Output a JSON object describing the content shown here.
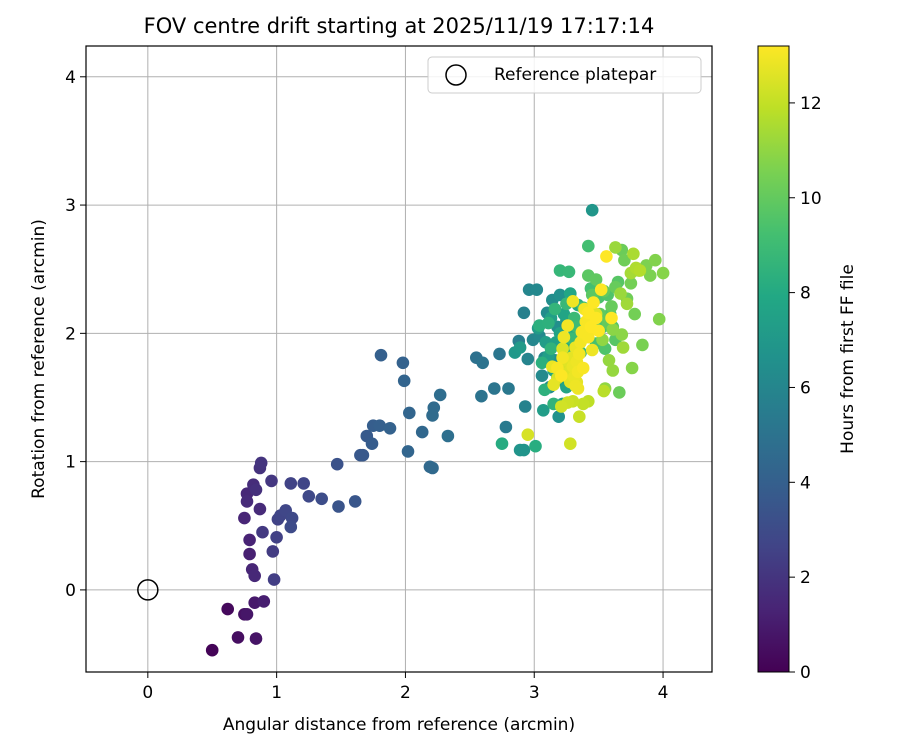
{
  "chart_data": {
    "type": "scatter",
    "title": "FOV centre drift starting at 2025/11/19 17:17:14",
    "xlabel": "Angular distance from reference (arcmin)",
    "ylabel": "Rotation from reference (arcmin)",
    "xlim": [
      -0.48,
      4.38
    ],
    "ylim": [
      -0.64,
      4.24
    ],
    "xticks": [
      0,
      1,
      2,
      3,
      4
    ],
    "yticks": [
      0,
      1,
      2,
      3,
      4
    ],
    "xtick_labels": [
      "0",
      "1",
      "2",
      "3",
      "4"
    ],
    "ytick_labels": [
      "0",
      "1",
      "2",
      "3",
      "4"
    ],
    "grid": true,
    "legend": {
      "position": "upper right",
      "entries": [
        "Reference platepar"
      ]
    },
    "reference_point": {
      "x": 0,
      "y": 0,
      "label": "Reference platepar"
    },
    "colorbar": {
      "label": "Hours from first FF file",
      "range": [
        0,
        13.2
      ],
      "ticks": [
        0,
        2,
        4,
        6,
        8,
        10,
        12
      ],
      "tick_labels": [
        "0",
        "2",
        "4",
        "6",
        "8",
        "10",
        "12"
      ],
      "colormap": "viridis"
    },
    "series": [
      {
        "name": "FOV centre drift",
        "points": [
          [
            0.5,
            -0.47,
            0.1
          ],
          [
            0.62,
            -0.15,
            0.3
          ],
          [
            0.7,
            -0.37,
            0.5
          ],
          [
            0.75,
            -0.19,
            0.6
          ],
          [
            0.84,
            -0.38,
            0.7
          ],
          [
            0.83,
            -0.1,
            0.9
          ],
          [
            0.9,
            -0.09,
            1.1
          ],
          [
            0.77,
            -0.19,
            0.8
          ],
          [
            0.79,
            0.28,
            1.2
          ],
          [
            0.79,
            0.39,
            1.3
          ],
          [
            0.81,
            0.16,
            1.4
          ],
          [
            0.83,
            0.11,
            1.5
          ],
          [
            0.87,
            0.63,
            1.6
          ],
          [
            0.75,
            0.56,
            1.4
          ],
          [
            0.77,
            0.75,
            1.5
          ],
          [
            0.77,
            0.69,
            1.6
          ],
          [
            0.82,
            0.82,
            1.7
          ],
          [
            0.84,
            0.78,
            1.8
          ],
          [
            0.87,
            0.95,
            1.9
          ],
          [
            0.88,
            0.99,
            2.0
          ],
          [
            0.89,
            0.45,
            2.2
          ],
          [
            0.96,
            0.85,
            2.1
          ],
          [
            0.97,
            0.3,
            2.3
          ],
          [
            0.98,
            0.08,
            2.4
          ],
          [
            1.0,
            0.41,
            2.5
          ],
          [
            1.01,
            0.55,
            2.6
          ],
          [
            1.03,
            0.58,
            2.7
          ],
          [
            1.07,
            0.62,
            2.8
          ],
          [
            1.11,
            0.49,
            3.0
          ],
          [
            1.12,
            0.56,
            2.9
          ],
          [
            1.11,
            0.83,
            2.6
          ],
          [
            1.21,
            0.83,
            2.7
          ],
          [
            1.25,
            0.73,
            2.9
          ],
          [
            1.35,
            0.71,
            3.1
          ],
          [
            1.47,
            0.98,
            3.3
          ],
          [
            1.48,
            0.65,
            3.4
          ],
          [
            1.61,
            0.69,
            3.5
          ],
          [
            1.65,
            1.05,
            3.6
          ],
          [
            1.67,
            1.05,
            3.6
          ],
          [
            1.7,
            1.2,
            3.7
          ],
          [
            1.74,
            1.14,
            3.8
          ],
          [
            1.75,
            1.28,
            3.9
          ],
          [
            1.8,
            1.28,
            4.0
          ],
          [
            1.81,
            1.83,
            4.0
          ],
          [
            1.88,
            1.26,
            4.1
          ],
          [
            1.98,
            1.77,
            4.1
          ],
          [
            1.99,
            1.63,
            4.2
          ],
          [
            2.02,
            1.08,
            4.3
          ],
          [
            2.03,
            1.38,
            4.3
          ],
          [
            2.13,
            1.23,
            4.4
          ],
          [
            2.19,
            0.96,
            4.5
          ],
          [
            2.21,
            0.95,
            4.5
          ],
          [
            2.21,
            1.36,
            4.6
          ],
          [
            2.22,
            1.42,
            4.6
          ],
          [
            2.27,
            1.52,
            4.7
          ],
          [
            2.33,
            1.2,
            4.8
          ],
          [
            2.55,
            1.81,
            4.9
          ],
          [
            2.59,
            1.51,
            5.0
          ],
          [
            2.6,
            1.77,
            5.0
          ],
          [
            2.69,
            1.57,
            5.1
          ],
          [
            2.73,
            1.84,
            5.2
          ],
          [
            2.8,
            1.57,
            5.3
          ],
          [
            2.78,
            1.27,
            5.4
          ],
          [
            2.88,
            1.94,
            5.6
          ],
          [
            2.89,
            1.09,
            6.8
          ],
          [
            2.92,
            1.09,
            6.8
          ],
          [
            2.92,
            2.16,
            5.7
          ],
          [
            2.93,
            1.43,
            5.8
          ],
          [
            2.95,
            1.8,
            5.9
          ],
          [
            2.96,
            2.34,
            6.0
          ],
          [
            2.99,
            1.95,
            6.0
          ],
          [
            3.02,
            2.34,
            6.1
          ],
          [
            3.04,
            1.98,
            6.2
          ],
          [
            3.06,
            1.67,
            6.2
          ],
          [
            3.08,
            1.81,
            6.3
          ],
          [
            3.1,
            2.16,
            6.3
          ],
          [
            3.12,
            1.58,
            6.4
          ],
          [
            3.14,
            2.26,
            6.4
          ],
          [
            3.16,
            1.79,
            6.5
          ],
          [
            3.18,
            2.05,
            6.5
          ],
          [
            3.19,
            1.35,
            6.6
          ],
          [
            3.2,
            2.3,
            6.6
          ],
          [
            3.22,
            1.63,
            6.7
          ],
          [
            3.24,
            1.84,
            6.8
          ],
          [
            3.25,
            2.1,
            6.9
          ],
          [
            3.45,
            2.96,
            6.9
          ],
          [
            2.85,
            1.85,
            7.0
          ],
          [
            2.89,
            1.89,
            7.1
          ],
          [
            3.03,
            2.04,
            7.2
          ],
          [
            3.07,
            1.4,
            7.3
          ],
          [
            3.09,
            1.93,
            7.3
          ],
          [
            3.11,
            1.82,
            7.4
          ],
          [
            3.13,
            2.12,
            7.4
          ],
          [
            3.15,
            1.71,
            7.5
          ],
          [
            3.17,
            1.93,
            7.5
          ],
          [
            3.2,
            2.0,
            7.6
          ],
          [
            3.22,
            1.45,
            7.6
          ],
          [
            3.23,
            2.15,
            7.7
          ],
          [
            3.25,
            1.58,
            7.7
          ],
          [
            3.27,
            1.89,
            7.8
          ],
          [
            3.28,
            2.31,
            7.8
          ],
          [
            3.3,
            2.04,
            7.9
          ],
          [
            3.32,
            1.73,
            7.9
          ],
          [
            3.34,
            2.22,
            8.0
          ],
          [
            2.75,
            1.14,
            8.1
          ],
          [
            3.01,
            1.12,
            8.2
          ],
          [
            3.04,
            2.06,
            8.3
          ],
          [
            3.06,
            1.77,
            8.3
          ],
          [
            3.08,
            1.56,
            8.4
          ],
          [
            3.11,
            2.08,
            8.4
          ],
          [
            3.13,
            1.88,
            8.5
          ],
          [
            3.15,
            1.45,
            8.5
          ],
          [
            3.16,
            2.19,
            8.6
          ],
          [
            3.18,
            1.66,
            8.6
          ],
          [
            3.2,
            2.49,
            8.7
          ],
          [
            3.23,
            1.87,
            8.7
          ],
          [
            3.25,
            2.23,
            8.8
          ],
          [
            3.27,
            2.48,
            8.8
          ],
          [
            3.29,
            1.96,
            8.9
          ],
          [
            3.31,
            2.12,
            8.9
          ],
          [
            3.33,
            2.05,
            9.0
          ],
          [
            3.36,
            1.85,
            9.0
          ],
          [
            3.38,
            2.2,
            9.1
          ],
          [
            3.4,
            1.98,
            9.1
          ],
          [
            3.42,
            2.68,
            9.2
          ],
          [
            3.44,
            2.35,
            9.2
          ],
          [
            3.46,
            2.1,
            9.3
          ],
          [
            3.48,
            1.92,
            9.3
          ],
          [
            3.5,
            2.28,
            9.4
          ],
          [
            3.53,
            2.05,
            9.4
          ],
          [
            3.55,
            1.88,
            9.5
          ],
          [
            3.57,
            2.3,
            9.5
          ],
          [
            3.59,
            2.15,
            9.6
          ],
          [
            3.61,
            2.05,
            9.6
          ],
          [
            3.63,
            1.95,
            9.7
          ],
          [
            3.65,
            2.4,
            9.7
          ],
          [
            3.42,
            2.45,
            9.8
          ],
          [
            3.45,
            2.3,
            9.8
          ],
          [
            3.48,
            2.42,
            9.9
          ],
          [
            3.51,
            2.15,
            9.9
          ],
          [
            3.54,
            2.33,
            10.0
          ],
          [
            3.57,
            2.08,
            10.0
          ],
          [
            3.6,
            2.21,
            10.1
          ],
          [
            3.63,
            2.36,
            10.1
          ],
          [
            3.66,
            1.54,
            10.2
          ],
          [
            3.68,
            2.65,
            10.2
          ],
          [
            3.7,
            2.57,
            10.3
          ],
          [
            3.72,
            2.27,
            10.3
          ],
          [
            3.75,
            2.39,
            10.4
          ],
          [
            3.78,
            2.15,
            10.4
          ],
          [
            3.81,
            2.49,
            10.5
          ],
          [
            3.84,
            1.91,
            10.5
          ],
          [
            3.87,
            2.53,
            10.6
          ],
          [
            3.9,
            2.45,
            10.6
          ],
          [
            3.94,
            2.57,
            10.7
          ],
          [
            3.97,
            2.11,
            10.7
          ],
          [
            4.0,
            2.47,
            10.8
          ],
          [
            3.76,
            1.73,
            10.8
          ],
          [
            3.68,
            1.99,
            10.9
          ],
          [
            3.61,
            2.03,
            10.9
          ],
          [
            3.55,
            1.57,
            11.0
          ],
          [
            3.53,
            1.95,
            11.0
          ],
          [
            3.58,
            1.79,
            11.1
          ],
          [
            3.61,
            1.71,
            11.1
          ],
          [
            3.63,
            2.67,
            11.2
          ],
          [
            3.67,
            2.31,
            11.2
          ],
          [
            3.69,
            1.89,
            11.3
          ],
          [
            3.72,
            2.23,
            11.3
          ],
          [
            3.75,
            2.47,
            11.4
          ],
          [
            3.77,
            2.62,
            11.5
          ],
          [
            3.79,
            2.51,
            11.6
          ],
          [
            3.82,
            2.49,
            11.7
          ],
          [
            3.54,
            1.55,
            11.8
          ],
          [
            3.42,
            1.47,
            11.9
          ],
          [
            3.38,
            1.45,
            12.0
          ],
          [
            3.3,
            1.47,
            12.1
          ],
          [
            3.26,
            1.46,
            12.2
          ],
          [
            3.28,
            1.14,
            12.3
          ],
          [
            3.21,
            1.43,
            12.3
          ],
          [
            3.18,
            1.65,
            12.4
          ],
          [
            3.2,
            1.72,
            12.4
          ],
          [
            3.22,
            1.88,
            12.5
          ],
          [
            3.24,
            1.68,
            12.5
          ],
          [
            3.25,
            1.79,
            12.6
          ],
          [
            3.27,
            1.7,
            12.6
          ],
          [
            3.28,
            1.62,
            12.7
          ],
          [
            3.29,
            1.81,
            12.7
          ],
          [
            3.3,
            1.74,
            12.8
          ],
          [
            3.31,
            1.66,
            12.8
          ],
          [
            3.32,
            1.59,
            12.9
          ],
          [
            3.33,
            1.78,
            12.9
          ],
          [
            3.34,
            1.7,
            13.0
          ],
          [
            3.35,
            1.84,
            13.0
          ],
          [
            3.36,
            1.93,
            13.0
          ],
          [
            3.37,
            2.01,
            13.1
          ],
          [
            3.38,
            1.73,
            13.1
          ],
          [
            3.4,
            2.09,
            13.1
          ],
          [
            3.42,
            2.16,
            13.2
          ],
          [
            3.44,
            2.05,
            13.2
          ],
          [
            3.46,
            2.24,
            13.2
          ],
          [
            3.48,
            2.12,
            13.2
          ],
          [
            3.5,
            2.02,
            13.2
          ],
          [
            3.52,
            2.34,
            13.2
          ],
          [
            3.56,
            2.6,
            13.2
          ],
          [
            3.6,
            2.12,
            13.2
          ],
          [
            3.3,
            2.25,
            12.9
          ],
          [
            3.23,
            1.97,
            12.9
          ],
          [
            3.14,
            1.74,
            12.8
          ],
          [
            2.95,
            1.21,
            12.4
          ],
          [
            3.35,
            1.35,
            12.1
          ],
          [
            3.15,
            1.6,
            12.7
          ],
          [
            3.34,
            1.57,
            12.9
          ],
          [
            3.22,
            1.81,
            13.0
          ],
          [
            3.32,
            1.89,
            12.8
          ],
          [
            3.26,
            2.06,
            13.0
          ],
          [
            3.45,
            1.87,
            12.9
          ],
          [
            3.42,
            1.97,
            13.1
          ],
          [
            3.39,
            2.19,
            13.0
          ],
          [
            3.48,
            2.15,
            12.6
          ],
          [
            3.18,
            1.73,
            13.1
          ],
          [
            3.21,
            1.67,
            13.2
          ],
          [
            3.33,
            1.62,
            12.7
          ]
        ]
      }
    ]
  }
}
